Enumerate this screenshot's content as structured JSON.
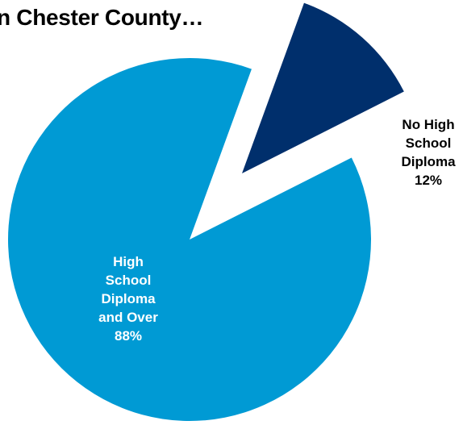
{
  "chart_data": {
    "type": "pie",
    "title": "n Chester County…",
    "slices": [
      {
        "label_lines": [
          "High",
          "School",
          "Diploma",
          "and Over"
        ],
        "value": 88,
        "value_label": "88%",
        "color": "#009ad4",
        "label_color": "#ffffff"
      },
      {
        "label_lines": [
          "No High",
          "School",
          "Diploma"
        ],
        "value": 12,
        "value_label": "12%",
        "color": "#002f6c",
        "label_color": "#000000",
        "exploded": true
      }
    ]
  }
}
